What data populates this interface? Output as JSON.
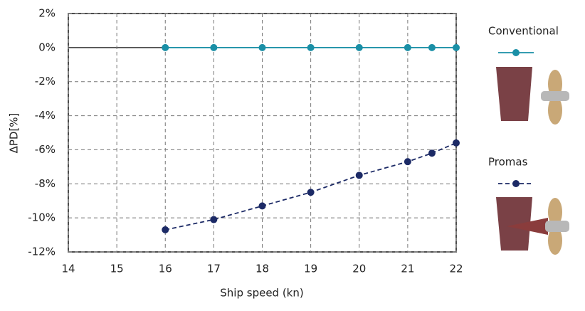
{
  "chart_data": {
    "type": "line",
    "x_label": "Ship speed (kn)",
    "y_label": "ΔPD[%]",
    "x": [
      16,
      17,
      18,
      19,
      20,
      21,
      21.5,
      22
    ],
    "series": [
      {
        "name": "Conventional",
        "color": "#1a8fa6",
        "dashed": false,
        "values": [
          0,
          0,
          0,
          0,
          0,
          0,
          0,
          0
        ]
      },
      {
        "name": "Promas",
        "color": "#1c2a66",
        "dashed": true,
        "values": [
          -10.7,
          -10.1,
          -9.3,
          -8.5,
          -7.5,
          -6.7,
          -6.2,
          -5.6
        ]
      }
    ],
    "xlim": [
      14,
      22
    ],
    "xticks": [
      14,
      15,
      16,
      17,
      18,
      19,
      20,
      21,
      22
    ],
    "ylim": [
      -12,
      2
    ],
    "yticks": [
      {
        "value": -12,
        "label": "-12%"
      },
      {
        "value": -10,
        "label": "-10%"
      },
      {
        "value": -8,
        "label": "-8%"
      },
      {
        "value": -6,
        "label": "-6%"
      },
      {
        "value": -4,
        "label": "-4%"
      },
      {
        "value": -2,
        "label": "-2%"
      },
      {
        "value": 0,
        "label": "0%"
      },
      {
        "value": 2,
        "label": "2%"
      }
    ],
    "grid": true
  }
}
